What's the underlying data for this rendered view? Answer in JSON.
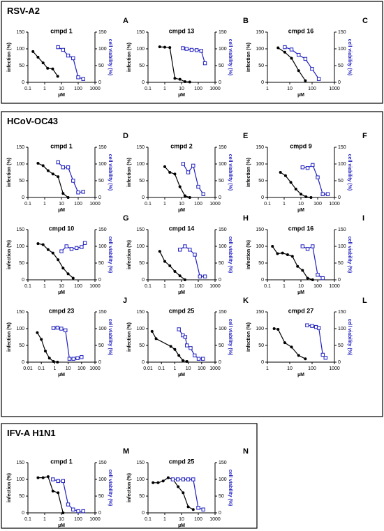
{
  "sections": [
    "RSV-A2",
    "HCoV-OC43",
    "IFV-A H1N1"
  ],
  "chart_data": [
    {
      "type": "line",
      "panel": "A",
      "title": "cmpd 1",
      "xlabel": "µM",
      "ylabel": "infection (%)",
      "y2label": "cell viability (%)",
      "log_x": true,
      "xlim": [
        0.1,
        1000
      ],
      "xticks": [
        0.1,
        1,
        10,
        100,
        1000
      ],
      "ylim": [
        0,
        150
      ],
      "yticks": [
        0,
        50,
        100,
        150
      ],
      "y2lim": [
        0,
        150
      ],
      "y2ticks": [
        0,
        50,
        100,
        150
      ],
      "series": [
        {
          "name": "infection",
          "color": "#000000",
          "x": [
            0.2,
            0.4,
            0.8,
            1.5,
            3,
            6
          ],
          "values": [
            92,
            75,
            58,
            42,
            40,
            18
          ]
        },
        {
          "name": "cell viability",
          "color": "#1f1fbf",
          "axis": "y2",
          "x": [
            6.25,
            12.5,
            25,
            50,
            100,
            200
          ],
          "values": [
            105,
            97,
            80,
            72,
            15,
            10
          ]
        }
      ]
    },
    {
      "type": "line",
      "panel": "B",
      "title": "cmpd 13",
      "xlabel": "µM",
      "ylabel": "infection (%)",
      "y2label": "cell viability (%)",
      "log_x": true,
      "xlim": [
        0.1,
        1000
      ],
      "xticks": [
        0.1,
        1,
        10,
        100,
        1000
      ],
      "ylim": [
        0,
        150
      ],
      "yticks": [
        0,
        50,
        100,
        150
      ],
      "y2lim": [
        0,
        150
      ],
      "y2ticks": [
        0,
        50,
        100,
        150
      ],
      "series": [
        {
          "name": "infection",
          "color": "#000000",
          "x": [
            0.5,
            1,
            2,
            4,
            8,
            16,
            31
          ],
          "values": [
            106,
            105,
            104,
            12,
            9,
            2,
            1
          ]
        },
        {
          "name": "cell viability",
          "color": "#1f1fbf",
          "axis": "y2",
          "x": [
            12,
            20,
            40,
            80,
            150,
            250
          ],
          "values": [
            102,
            100,
            97,
            96,
            94,
            57
          ]
        }
      ]
    },
    {
      "type": "line",
      "panel": "C",
      "title": "cmpd 16",
      "xlabel": "µM",
      "ylabel": "infection (%)",
      "y2label": "cell viability (%)",
      "log_x": true,
      "xlim": [
        1,
        1000
      ],
      "xticks": [
        1,
        10,
        100,
        1000
      ],
      "ylim": [
        0,
        150
      ],
      "yticks": [
        0,
        50,
        100,
        150
      ],
      "y2lim": [
        0,
        150
      ],
      "y2ticks": [
        0,
        50,
        100,
        150
      ],
      "series": [
        {
          "name": "infection",
          "color": "#000000",
          "x": [
            3,
            6,
            12,
            25,
            50
          ],
          "values": [
            103,
            90,
            72,
            35,
            5
          ]
        },
        {
          "name": "cell viability",
          "color": "#1f1fbf",
          "axis": "y2",
          "x": [
            6,
            12,
            25,
            50,
            100,
            200
          ],
          "values": [
            105,
            98,
            82,
            70,
            40,
            10
          ]
        }
      ]
    },
    {
      "type": "line",
      "panel": "D",
      "title": "cmpd 1",
      "xlabel": "µM",
      "ylabel": "infection (%)",
      "y2label": "cell viability (%)",
      "log_x": true,
      "xlim": [
        0.1,
        1000
      ],
      "xticks": [
        0.1,
        1,
        10,
        100,
        1000
      ],
      "ylim": [
        0,
        150
      ],
      "yticks": [
        0,
        50,
        100,
        150
      ],
      "y2lim": [
        0,
        150
      ],
      "y2ticks": [
        0,
        50,
        100,
        150
      ],
      "series": [
        {
          "name": "infection",
          "color": "#000000",
          "x": [
            0.4,
            0.8,
            1.6,
            3.1,
            6.3,
            12.5,
            25
          ],
          "values": [
            102,
            95,
            80,
            70,
            62,
            12,
            0
          ]
        },
        {
          "name": "cell viability",
          "color": "#1f1fbf",
          "axis": "y2",
          "x": [
            6.3,
            12.5,
            25,
            50,
            100,
            200
          ],
          "values": [
            105,
            90,
            90,
            50,
            15,
            17
          ]
        }
      ]
    },
    {
      "type": "line",
      "panel": "E",
      "title": "cmpd 2",
      "xlabel": "µM",
      "ylabel": "infection (%)",
      "y2label": "cell viability (%)",
      "log_x": true,
      "xlim": [
        0.1,
        1000
      ],
      "xticks": [
        0.1,
        1,
        10,
        100,
        1000
      ],
      "ylim": [
        0,
        150
      ],
      "yticks": [
        0,
        50,
        100,
        150
      ],
      "y2lim": [
        0,
        150
      ],
      "y2ticks": [
        0,
        50,
        100,
        150
      ],
      "series": [
        {
          "name": "infection",
          "color": "#000000",
          "x": [
            1,
            2,
            4,
            8,
            16,
            31
          ],
          "values": [
            92,
            75,
            70,
            32,
            5,
            0
          ]
        },
        {
          "name": "cell viability",
          "color": "#1f1fbf",
          "axis": "y2",
          "x": [
            12.5,
            25,
            50,
            100,
            200
          ],
          "values": [
            100,
            75,
            95,
            32,
            10
          ]
        }
      ]
    },
    {
      "type": "line",
      "panel": "F",
      "title": "cmpd 9",
      "xlabel": "µM",
      "ylabel": "infection (%)",
      "y2label": "cell viability (%)",
      "log_x": true,
      "xlim": [
        0.1,
        1000
      ],
      "xticks": [
        0.1,
        1,
        10,
        100,
        1000
      ],
      "ylim": [
        0,
        150
      ],
      "yticks": [
        0,
        50,
        100,
        150
      ],
      "y2lim": [
        0,
        150
      ],
      "y2ticks": [
        0,
        50,
        100,
        150
      ],
      "series": [
        {
          "name": "infection",
          "color": "#000000",
          "x": [
            0.6,
            1.2,
            2.5,
            5,
            10,
            20,
            40
          ],
          "values": [
            75,
            65,
            45,
            25,
            10,
            2,
            0
          ]
        },
        {
          "name": "cell viability",
          "color": "#1f1fbf",
          "axis": "y2",
          "x": [
            12.5,
            25,
            50,
            100,
            200,
            400
          ],
          "values": [
            90,
            88,
            97,
            60,
            10,
            10
          ]
        }
      ]
    },
    {
      "type": "line",
      "panel": "G",
      "title": "cmpd 10",
      "xlabel": "µM",
      "ylabel": "infection (%)",
      "y2label": "cell viability (%)",
      "log_x": true,
      "xlim": [
        0.1,
        1000
      ],
      "xticks": [
        0.1,
        1,
        10,
        100,
        1000
      ],
      "ylim": [
        0,
        150
      ],
      "yticks": [
        0,
        50,
        100,
        150
      ],
      "y2lim": [
        0,
        150
      ],
      "y2ticks": [
        0,
        50,
        100,
        150
      ],
      "series": [
        {
          "name": "infection",
          "color": "#000000",
          "x": [
            0.4,
            0.8,
            1.6,
            3.1,
            6.3,
            12.5,
            25,
            50
          ],
          "values": [
            108,
            105,
            90,
            80,
            60,
            35,
            18,
            5
          ]
        },
        {
          "name": "cell viability",
          "color": "#1f1fbf",
          "axis": "y2",
          "x": [
            10,
            20,
            40,
            80,
            160,
            250
          ],
          "values": [
            85,
            100,
            92,
            95,
            98,
            110
          ]
        }
      ]
    },
    {
      "type": "line",
      "panel": "H",
      "title": "cmpd 14",
      "xlabel": "µM",
      "ylabel": "infection (%)",
      "y2label": "cell viability (%)",
      "log_x": true,
      "xlim": [
        0.1,
        1000
      ],
      "xticks": [
        0.1,
        1,
        10,
        100,
        1000
      ],
      "ylim": [
        0,
        150
      ],
      "yticks": [
        0,
        50,
        100,
        150
      ],
      "y2lim": [
        0,
        150
      ],
      "y2ticks": [
        0,
        50,
        100,
        150
      ],
      "series": [
        {
          "name": "infection",
          "color": "#000000",
          "x": [
            0.5,
            1,
            2,
            4,
            8,
            16
          ],
          "values": [
            85,
            55,
            42,
            25,
            12,
            0
          ]
        },
        {
          "name": "cell viability",
          "color": "#1f1fbf",
          "axis": "y2",
          "x": [
            8,
            16,
            31,
            62,
            125,
            250
          ],
          "values": [
            90,
            100,
            90,
            75,
            10,
            10
          ]
        }
      ]
    },
    {
      "type": "line",
      "panel": "I",
      "title": "cmpd 16",
      "xlabel": "µM",
      "ylabel": "infection (%)",
      "y2label": "cell viability (%)",
      "log_x": true,
      "xlim": [
        0.1,
        1000
      ],
      "xticks": [
        0.1,
        1,
        10,
        100,
        1000
      ],
      "ylim": [
        0,
        150
      ],
      "yticks": [
        0,
        50,
        100,
        150
      ],
      "y2lim": [
        0,
        150
      ],
      "y2ticks": [
        0,
        50,
        100,
        150
      ],
      "series": [
        {
          "name": "infection",
          "color": "#000000",
          "x": [
            0.2,
            0.4,
            0.8,
            1.6,
            3.1,
            6.3,
            12.5,
            25,
            50
          ],
          "values": [
            100,
            78,
            80,
            75,
            70,
            40,
            28,
            5,
            0
          ]
        },
        {
          "name": "cell viability",
          "color": "#1f1fbf",
          "axis": "y2",
          "x": [
            12.5,
            25,
            50,
            100,
            200
          ],
          "values": [
            100,
            92,
            100,
            15,
            5
          ]
        }
      ]
    },
    {
      "type": "line",
      "panel": "J",
      "title": "cmpd 23",
      "xlabel": "µM",
      "ylabel": "infection (%)",
      "y2label": "cell viability (%)",
      "log_x": true,
      "xlim": [
        0.01,
        1000
      ],
      "xticks": [
        0.01,
        0.1,
        1,
        10,
        100,
        1000
      ],
      "ylim": [
        0,
        150
      ],
      "yticks": [
        0,
        50,
        100,
        150
      ],
      "y2lim": [
        0,
        150
      ],
      "y2ticks": [
        0,
        50,
        100,
        150
      ],
      "series": [
        {
          "name": "infection",
          "color": "#000000",
          "x": [
            0.05,
            0.1,
            0.2,
            0.4,
            0.8,
            1.6
          ],
          "values": [
            88,
            68,
            33,
            12,
            2,
            0
          ]
        },
        {
          "name": "cell viability",
          "color": "#1f1fbf",
          "axis": "y2",
          "x": [
            0.8,
            1.6,
            3.1,
            6.3,
            12.5,
            25,
            50,
            100
          ],
          "values": [
            102,
            103,
            100,
            95,
            10,
            10,
            12,
            15
          ]
        }
      ]
    },
    {
      "type": "line",
      "panel": "K",
      "title": "cmpd 25",
      "xlabel": "µM",
      "ylabel": "infection (%)",
      "y2label": "cell viability (%)",
      "log_x": true,
      "xlim": [
        0.01,
        1000
      ],
      "xticks": [
        0.01,
        0.1,
        1,
        10,
        100,
        1000
      ],
      "ylim": [
        0,
        150
      ],
      "yticks": [
        0,
        50,
        100,
        150
      ],
      "y2lim": [
        0,
        150
      ],
      "y2ticks": [
        0,
        50,
        100,
        150
      ],
      "series": [
        {
          "name": "infection",
          "color": "#000000",
          "x": [
            0.02,
            0.04,
            0.5,
            1,
            2,
            4,
            8
          ],
          "values": [
            92,
            70,
            47,
            38,
            20,
            5,
            2
          ]
        },
        {
          "name": "cell viability",
          "color": "#1f1fbf",
          "axis": "y2",
          "x": [
            2,
            4,
            6,
            8,
            15,
            30,
            60,
            125
          ],
          "values": [
            98,
            80,
            75,
            50,
            42,
            20,
            10,
            10
          ]
        }
      ]
    },
    {
      "type": "line",
      "panel": "L",
      "title": "cmpd 27",
      "xlabel": "µM",
      "ylabel": "infection (%)",
      "y2label": "cell viability (%)",
      "log_x": true,
      "xlim": [
        1,
        1000
      ],
      "xticks": [
        1,
        10,
        100,
        1000
      ],
      "ylim": [
        0,
        150
      ],
      "yticks": [
        0,
        50,
        100,
        150
      ],
      "y2lim": [
        0,
        150
      ],
      "y2ticks": [
        0,
        50,
        100,
        150
      ],
      "series": [
        {
          "name": "infection",
          "color": "#000000",
          "x": [
            2,
            3,
            6,
            12,
            25,
            50
          ],
          "values": [
            100,
            98,
            58,
            45,
            20,
            10
          ]
        },
        {
          "name": "cell viability",
          "color": "#1f1fbf",
          "axis": "y2",
          "x": [
            60,
            100,
            150,
            200,
            300,
            400
          ],
          "values": [
            110,
            108,
            105,
            102,
            22,
            13
          ]
        }
      ]
    },
    {
      "type": "line",
      "panel": "M",
      "title": "cmpd 1",
      "xlabel": "µM",
      "ylabel": "infection (%)",
      "y2label": "cell viability (%)",
      "log_x": true,
      "xlim": [
        0.1,
        1000
      ],
      "xticks": [
        0.1,
        1,
        10,
        100,
        1000
      ],
      "ylim": [
        0,
        150
      ],
      "yticks": [
        0,
        50,
        100,
        150
      ],
      "y2lim": [
        0,
        150
      ],
      "y2ticks": [
        0,
        50,
        100,
        150
      ],
      "series": [
        {
          "name": "infection",
          "color": "#000000",
          "x": [
            0.4,
            0.8,
            1.6,
            3.1,
            6.3,
            12.5
          ],
          "values": [
            105,
            105,
            108,
            65,
            60,
            0
          ]
        },
        {
          "name": "cell viability",
          "color": "#1f1fbf",
          "axis": "y2",
          "x": [
            3.1,
            6.3,
            12.5,
            25,
            50,
            100,
            200
          ],
          "values": [
            100,
            95,
            95,
            25,
            10,
            5,
            5
          ]
        }
      ]
    },
    {
      "type": "line",
      "panel": "N",
      "title": "cmpd 25",
      "xlabel": "µM",
      "ylabel": "infection (%)",
      "y2label": "cell viability (%)",
      "log_x": true,
      "xlim": [
        0.1,
        1000
      ],
      "xticks": [
        0.1,
        1,
        10,
        100,
        1000
      ],
      "ylim": [
        0,
        150
      ],
      "yticks": [
        0,
        50,
        100,
        150
      ],
      "y2lim": [
        0,
        150
      ],
      "y2ticks": [
        0,
        50,
        100,
        150
      ],
      "series": [
        {
          "name": "infection",
          "color": "#000000",
          "x": [
            0.2,
            0.4,
            0.8,
            1.6,
            3.1,
            6.3,
            12.5,
            25,
            50
          ],
          "values": [
            90,
            90,
            95,
            105,
            100,
            78,
            60,
            18,
            10
          ]
        },
        {
          "name": "cell viability",
          "color": "#1f1fbf",
          "axis": "y2",
          "x": [
            3,
            6,
            12.5,
            25,
            50,
            100,
            200
          ],
          "values": [
            100,
            100,
            100,
            100,
            100,
            15,
            10
          ]
        }
      ]
    }
  ]
}
